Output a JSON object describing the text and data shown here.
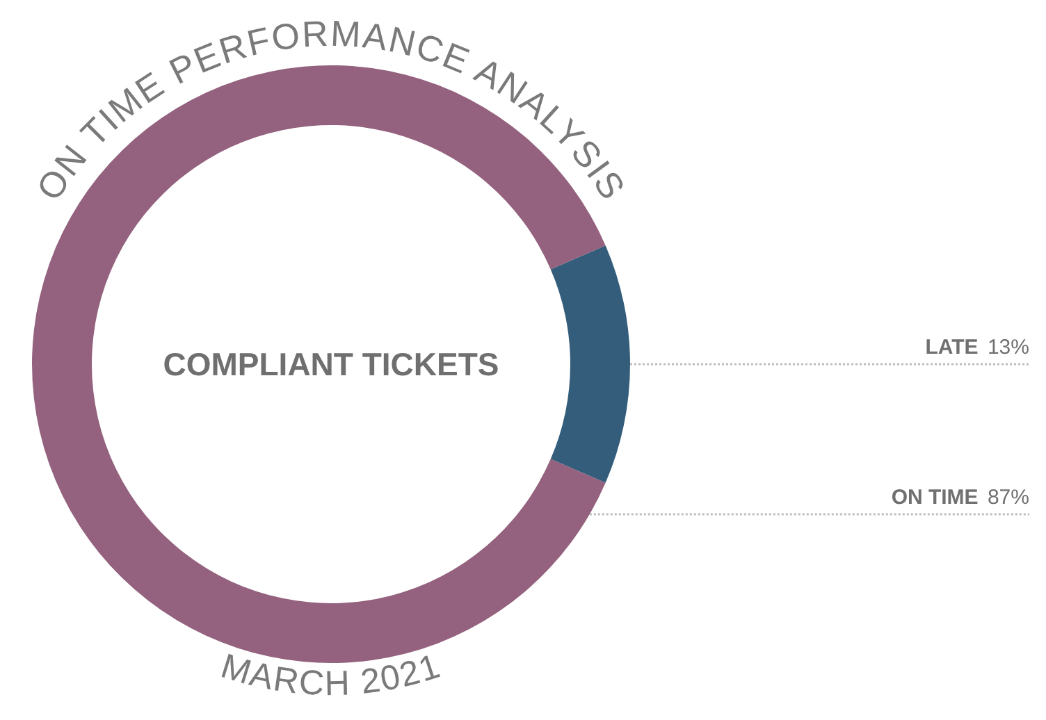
{
  "chart_data": {
    "type": "donut",
    "title": "ON TIME PERFORMANCE ANALYSIS",
    "subtitle": "MARCH 2021",
    "annotations": [
      "COMPLIANT TICKETS"
    ],
    "categories": [
      "LATE",
      "ON TIME"
    ],
    "values": [
      13,
      87
    ],
    "colors": [
      "#335d7b",
      "#94627e"
    ],
    "value_labels": [
      "13%",
      "87%"
    ],
    "legend": false
  }
}
